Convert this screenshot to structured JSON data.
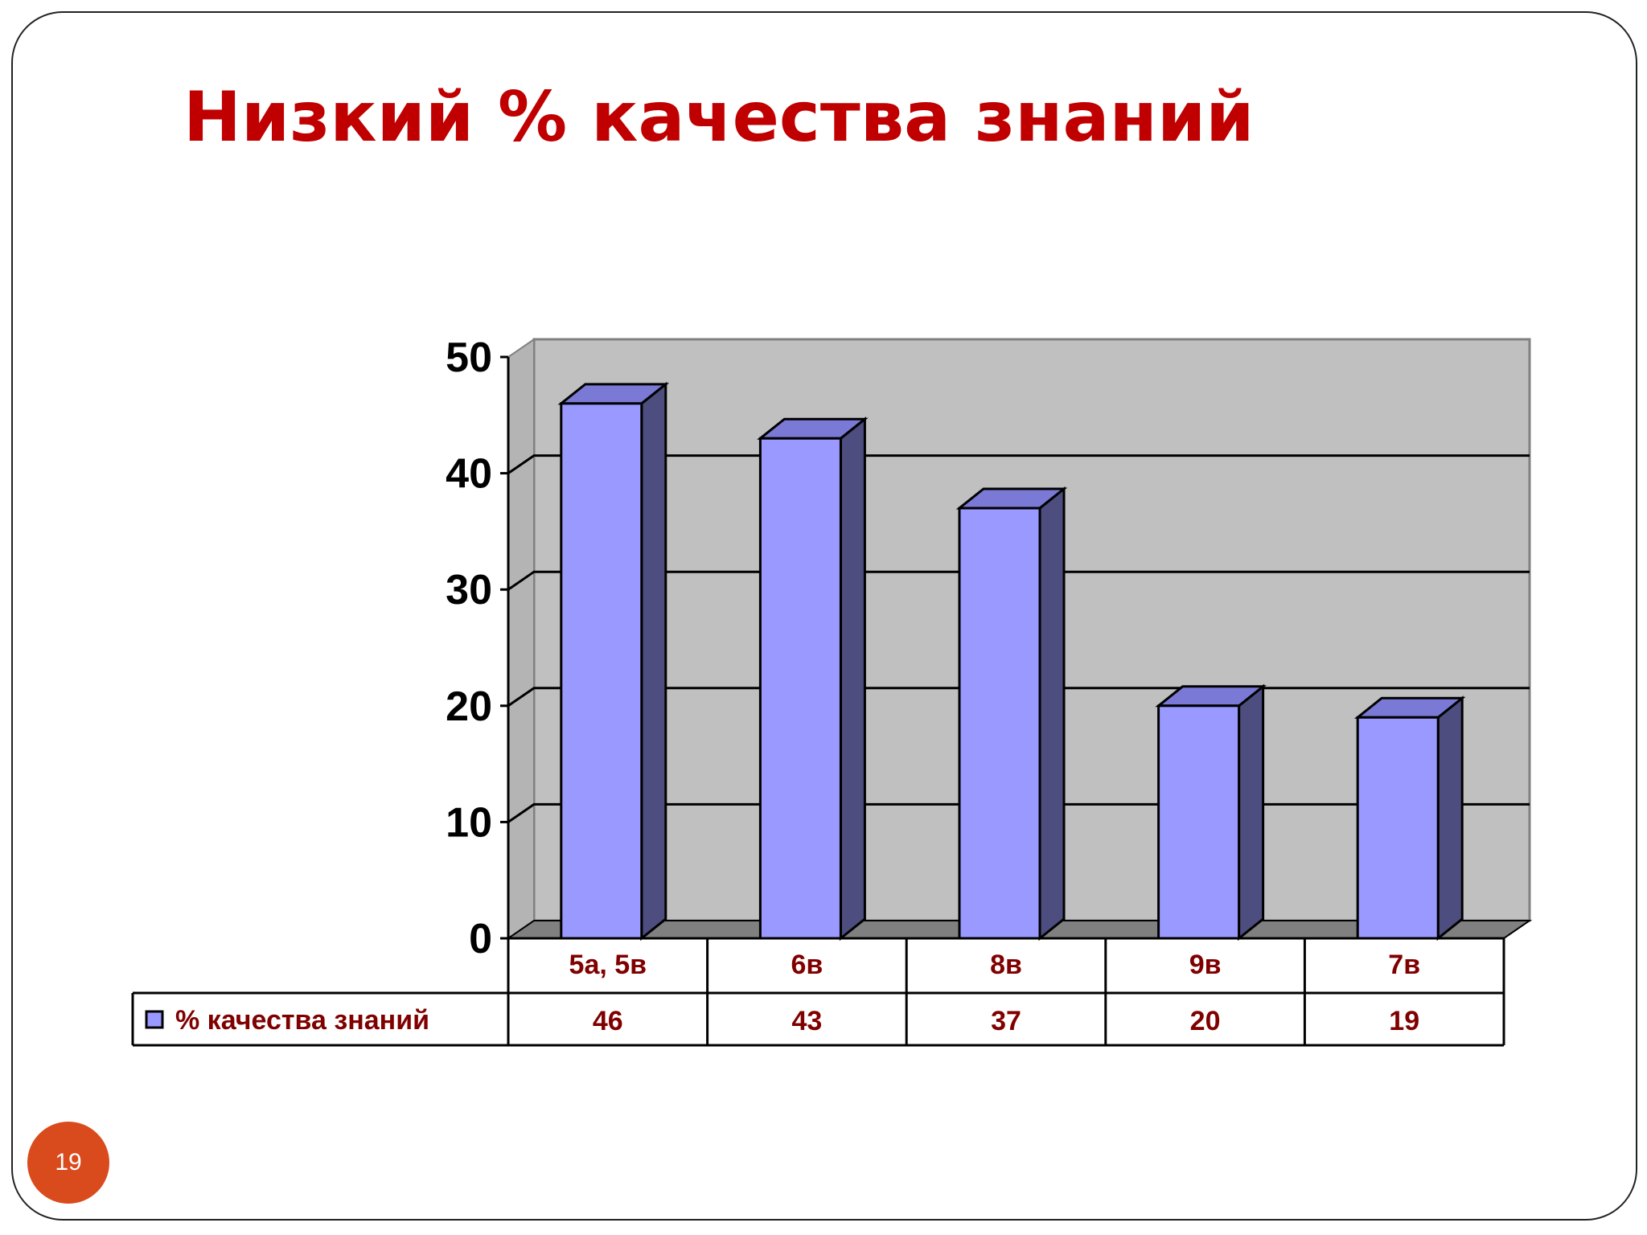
{
  "slide": {
    "title": "Низкий % качества знаний",
    "page_number": "19"
  },
  "chart_data": {
    "type": "bar",
    "title": "Низкий % качества знаний",
    "categories": [
      "5а, 5в",
      "6в",
      "8в",
      "9в",
      "7в"
    ],
    "series": [
      {
        "name": "% качества знаний",
        "values": [
          46,
          43,
          37,
          20,
          19
        ],
        "color": "#9999ff"
      }
    ],
    "ylim": [
      0,
      50
    ],
    "yticks": [
      0,
      10,
      20,
      30,
      40,
      50
    ],
    "grid": true,
    "legend": "data-table-left",
    "data_table": true,
    "colors": {
      "bar_front": "#9999ff",
      "bar_side": "#4d4d80",
      "bar_top": "#7a7ad6",
      "plot_wall": "#c0c0c0",
      "floor": "#808080",
      "table_text": "#800000"
    }
  }
}
